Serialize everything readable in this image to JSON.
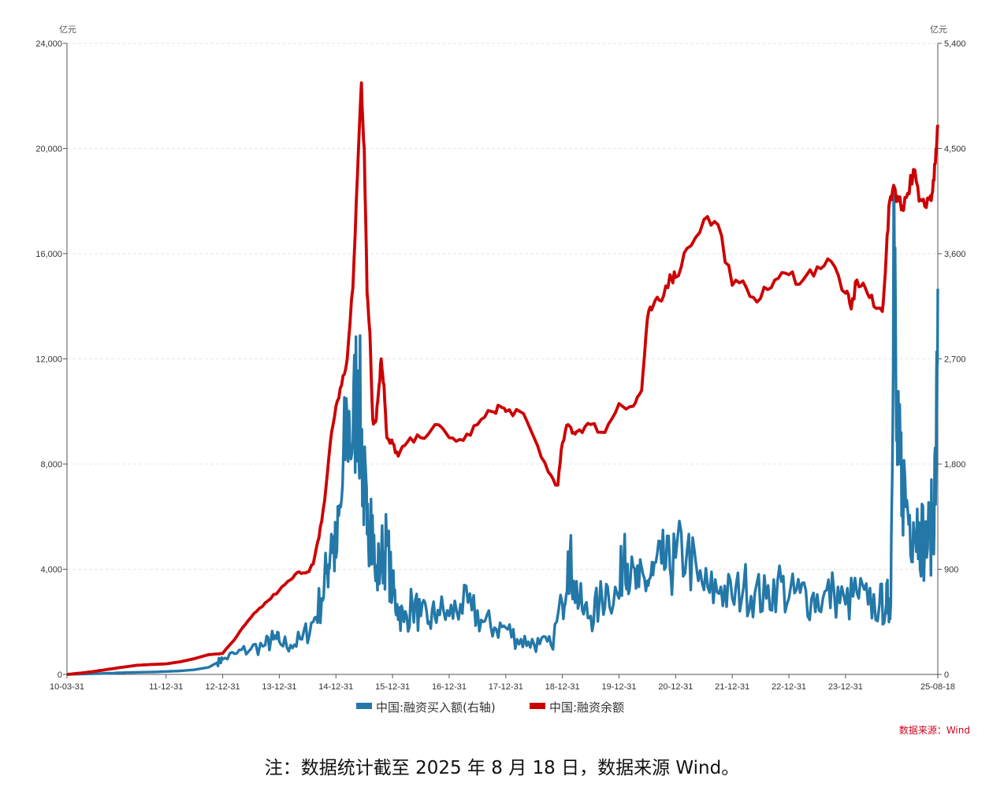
{
  "chart_data": {
    "type": "line",
    "left_unit": "亿元",
    "right_unit": "亿元",
    "left_ylim": [
      0,
      24000
    ],
    "left_ticks": [
      "0",
      "4,000",
      "8,000",
      "12,000",
      "16,000",
      "20,000",
      "24,000"
    ],
    "right_ylim": [
      0,
      5400
    ],
    "right_ticks": [
      "0",
      "900",
      "1,800",
      "2,700",
      "3,600",
      "4,500",
      "5,400"
    ],
    "x_tick_labels": [
      "10-03-31",
      "11-12-31",
      "12-12-31",
      "13-12-31",
      "14-12-31",
      "15-12-31",
      "16-12-31",
      "17-12-31",
      "18-12-31",
      "19-12-31",
      "20-12-31",
      "21-12-31",
      "22-12-31",
      "23-12-31",
      "25-08-18"
    ],
    "x_tick_years": [
      2010.25,
      2012.0,
      2013.0,
      2014.0,
      2015.0,
      2016.0,
      2017.0,
      2018.0,
      2019.0,
      2020.0,
      2021.0,
      2022.0,
      2023.0,
      2024.0,
      2025.63
    ],
    "x_range": [
      2010.25,
      2025.63
    ],
    "grid": true,
    "legend_position": "bottom",
    "series": [
      {
        "name": "中国:融资买入额(右轴)",
        "axis": "right",
        "color": "#2378a8",
        "x": [
          2010.25,
          2010.5,
          2010.75,
          2011.0,
          2011.25,
          2011.5,
          2011.75,
          2012.0,
          2012.25,
          2012.5,
          2012.75,
          2012.9,
          2013.0,
          2013.25,
          2013.5,
          2013.75,
          2013.9,
          2014.0,
          2014.2,
          2014.4,
          2014.6,
          2014.75,
          2014.85,
          2014.92,
          2015.0,
          2015.1,
          2015.2,
          2015.3,
          2015.38,
          2015.45,
          2015.5,
          2015.55,
          2015.62,
          2015.7,
          2015.8,
          2015.9,
          2016.0,
          2016.08,
          2016.2,
          2016.35,
          2016.5,
          2016.65,
          2016.8,
          2017.0,
          2017.2,
          2017.4,
          2017.6,
          2017.8,
          2018.0,
          2018.2,
          2018.4,
          2018.6,
          2018.8,
          2019.0,
          2019.1,
          2019.2,
          2019.35,
          2019.5,
          2019.65,
          2019.8,
          2020.0,
          2020.1,
          2020.2,
          2020.35,
          2020.5,
          2020.6,
          2020.75,
          2020.9,
          2021.0,
          2021.2,
          2021.4,
          2021.6,
          2021.8,
          2022.0,
          2022.2,
          2022.4,
          2022.6,
          2022.8,
          2023.0,
          2023.2,
          2023.4,
          2023.6,
          2023.8,
          2024.0,
          2024.2,
          2024.4,
          2024.6,
          2024.72,
          2024.76,
          2024.8,
          2024.85,
          2024.9,
          2024.95,
          2025.0,
          2025.1,
          2025.2,
          2025.3,
          2025.4,
          2025.5,
          2025.55,
          2025.6,
          2025.63
        ],
        "values": [
          0,
          3,
          6,
          10,
          15,
          18,
          20,
          25,
          30,
          40,
          60,
          100,
          130,
          180,
          220,
          250,
          300,
          280,
          250,
          300,
          450,
          650,
          900,
          1200,
          1000,
          1500,
          2200,
          2000,
          2600,
          2000,
          1600,
          1200,
          1500,
          800,
          1000,
          1100,
          700,
          600,
          450,
          600,
          500,
          450,
          550,
          500,
          600,
          550,
          450,
          400,
          400,
          300,
          280,
          260,
          250,
          600,
          1050,
          800,
          550,
          500,
          600,
          750,
          650,
          1200,
          800,
          750,
          800,
          850,
          950,
          900,
          1000,
          1050,
          800,
          700,
          750,
          650,
          750,
          700,
          650,
          800,
          650,
          700,
          650,
          650,
          700,
          600,
          700,
          600,
          600,
          600,
          650,
          600,
          4100,
          2000,
          1800,
          1700,
          1400,
          1300,
          1300,
          1100,
          1200,
          1400,
          1800,
          3300
        ]
      },
      {
        "name": "中国:融资余额",
        "axis": "left",
        "color": "#cc0000",
        "x": [
          2010.25,
          2010.5,
          2010.75,
          2011.0,
          2011.25,
          2011.5,
          2011.75,
          2012.0,
          2012.25,
          2012.5,
          2012.75,
          2013.0,
          2013.2,
          2013.4,
          2013.6,
          2013.8,
          2014.0,
          2014.2,
          2014.35,
          2014.5,
          2014.6,
          2014.7,
          2014.8,
          2014.9,
          2015.0,
          2015.1,
          2015.2,
          2015.3,
          2015.38,
          2015.45,
          2015.5,
          2015.55,
          2015.6,
          2015.65,
          2015.7,
          2015.75,
          2015.8,
          2015.85,
          2015.9,
          2015.95,
          2016.0,
          2016.1,
          2016.25,
          2016.5,
          2016.75,
          2017.0,
          2017.25,
          2017.5,
          2017.75,
          2017.9,
          2018.0,
          2018.25,
          2018.5,
          2018.75,
          2018.92,
          2019.0,
          2019.1,
          2019.2,
          2019.3,
          2019.5,
          2019.75,
          2020.0,
          2020.25,
          2020.4,
          2020.5,
          2020.6,
          2020.75,
          2020.9,
          2021.0,
          2021.2,
          2021.5,
          2021.75,
          2022.0,
          2022.25,
          2022.5,
          2022.75,
          2023.0,
          2023.25,
          2023.5,
          2023.75,
          2024.0,
          2024.1,
          2024.2,
          2024.35,
          2024.5,
          2024.65,
          2024.72,
          2024.78,
          2024.85,
          2024.95,
          2025.0,
          2025.1,
          2025.2,
          2025.3,
          2025.4,
          2025.5,
          2025.55,
          2025.6,
          2025.63
        ],
        "values": [
          0,
          50,
          120,
          200,
          280,
          350,
          380,
          400,
          480,
          600,
          750,
          800,
          1300,
          1900,
          2400,
          2800,
          3200,
          3600,
          3900,
          3900,
          4200,
          5200,
          6600,
          8800,
          10200,
          11000,
          12000,
          14700,
          19000,
          22500,
          20000,
          14500,
          13000,
          9700,
          9600,
          10700,
          12000,
          11000,
          9000,
          8800,
          8800,
          8300,
          8800,
          9000,
          9500,
          9000,
          8900,
          9500,
          10000,
          10200,
          10000,
          10000,
          9000,
          7700,
          7200,
          8800,
          9500,
          9200,
          9300,
          9500,
          9200,
          10300,
          10200,
          10800,
          13500,
          14000,
          14200,
          15200,
          15100,
          16200,
          17300,
          17100,
          14800,
          14700,
          14300,
          15000,
          15200,
          15000,
          15500,
          15700,
          14500,
          13900,
          15000,
          14700,
          14000,
          13800,
          16000,
          18000,
          18600,
          18000,
          17800,
          18300,
          19200,
          18000,
          17800,
          18200,
          18800,
          20000,
          20900
        ]
      }
    ],
    "source_text": "数据来源：Wind"
  },
  "note": "注：数据统计截至 2025 年 8 月 18 日，数据来源 Wind。"
}
